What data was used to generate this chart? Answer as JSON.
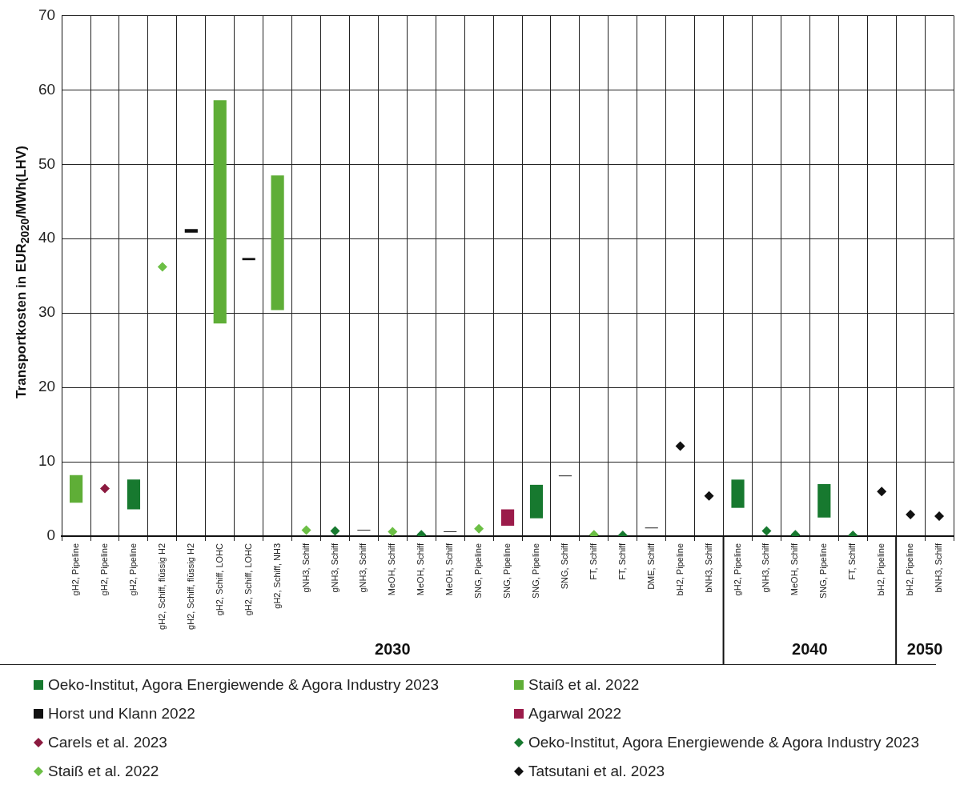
{
  "chart_data": {
    "type": "bar",
    "ylabel": "Transportkosten in EUR$_{2020}$/MWh(LHV)",
    "categories": [
      "gH2, Pipeline",
      "gH2, Pipeline",
      "gH2, Pipeline",
      "gH2, Schiff, flüssig H2",
      "gH2, Schiff, flüssig H2",
      "gH2, Schiff, LOHC",
      "gH2, Schiff, LOHC",
      "gH2, Schiff, NH3",
      "gNH3, Schiff",
      "gNH3, Schiff",
      "gNH3, Schiff",
      "MeOH, Schiff",
      "MeOH, Schiff",
      "MeOH, Schiff",
      "SNG, Pipeline",
      "SNG, Pipeline",
      "SNG, Pipeline",
      "SNG, Schiff",
      "FT, Schiff",
      "FT, Schiff",
      "DME, Schiff",
      "bH2, Pipeline",
      "bNH3, Schiff",
      "gH2, Pipeline",
      "gNH3, Schiff",
      "MeOH, Schiff",
      "SNG, Pipeline",
      "FT, Schiff",
      "bH2, Pipeline",
      "bH2, Pipeline",
      "bNH3, Schiff"
    ],
    "series": [
      {
        "name": "Oeko-Institut, Agora Energiewende & Agora Industry 2023",
        "color": "#17792f",
        "base": [
          null,
          null,
          3.6,
          null,
          null,
          null,
          null,
          null,
          null,
          null,
          null,
          null,
          null,
          null,
          null,
          null,
          2.4,
          null,
          null,
          null,
          null,
          null,
          null,
          3.8,
          null,
          null,
          2.5,
          null,
          null,
          null,
          null
        ],
        "values": [
          null,
          null,
          4.0,
          null,
          null,
          null,
          null,
          null,
          null,
          null,
          null,
          null,
          null,
          null,
          null,
          null,
          4.5,
          null,
          null,
          null,
          null,
          null,
          null,
          3.8,
          null,
          null,
          4.5,
          null,
          null,
          null,
          null
        ]
      },
      {
        "name": "Staiß et al. 2022",
        "color": "#5fae37",
        "base": [
          4.5,
          null,
          null,
          null,
          null,
          28.6,
          null,
          30.4,
          null,
          null,
          null,
          null,
          null,
          null,
          null,
          null,
          null,
          null,
          null,
          null,
          null,
          null,
          null,
          null,
          null,
          null,
          null,
          null,
          null,
          null,
          null
        ],
        "values": [
          3.7,
          null,
          null,
          null,
          null,
          30.0,
          null,
          18.1,
          null,
          null,
          null,
          null,
          null,
          null,
          null,
          null,
          null,
          null,
          null,
          null,
          null,
          null,
          null,
          null,
          null,
          null,
          null,
          null,
          null,
          null,
          null
        ]
      },
      {
        "name": "Horst und Klann 2022",
        "color": "#111111",
        "base": [
          null,
          null,
          null,
          null,
          40.8,
          null,
          37.1,
          null,
          null,
          null,
          0.75,
          null,
          null,
          0.55,
          null,
          null,
          null,
          8.05,
          null,
          null,
          1.05,
          null,
          null,
          null,
          null,
          null,
          null,
          null,
          null,
          null,
          null
        ],
        "values": [
          null,
          null,
          null,
          null,
          0.5,
          null,
          0.3,
          null,
          null,
          null,
          0.1,
          null,
          null,
          0.1,
          null,
          null,
          null,
          0.1,
          null,
          null,
          0.1,
          null,
          null,
          null,
          null,
          null,
          null,
          null,
          null,
          null,
          null
        ]
      },
      {
        "name": "Agarwal 2022",
        "color": "#9b1b4a",
        "base": [
          null,
          null,
          null,
          null,
          null,
          null,
          null,
          null,
          null,
          null,
          null,
          null,
          null,
          null,
          null,
          1.4,
          null,
          null,
          null,
          null,
          null,
          null,
          null,
          null,
          null,
          null,
          null,
          null,
          null,
          null,
          null
        ],
        "values": [
          null,
          null,
          null,
          null,
          null,
          null,
          null,
          null,
          null,
          null,
          null,
          null,
          null,
          null,
          null,
          2.2,
          null,
          null,
          null,
          null,
          null,
          null,
          null,
          null,
          null,
          null,
          null,
          null,
          null,
          null,
          null
        ]
      },
      {
        "name": "Carels et al. 2023",
        "type": "scatter",
        "color": "#8b1a3f",
        "values": [
          null,
          6.4,
          null,
          null,
          null,
          null,
          null,
          null,
          null,
          null,
          null,
          null,
          null,
          null,
          null,
          null,
          null,
          null,
          null,
          null,
          null,
          null,
          null,
          null,
          null,
          null,
          null,
          null,
          null,
          null,
          null
        ]
      },
      {
        "name": "Oeko-Institut, Agora Energiewende & Agora Industry 2023",
        "type": "scatter",
        "color": "#17792f",
        "values": [
          null,
          null,
          null,
          null,
          null,
          null,
          null,
          null,
          null,
          0.7,
          null,
          null,
          0.2,
          null,
          null,
          null,
          null,
          null,
          null,
          0.1,
          null,
          null,
          null,
          null,
          0.7,
          0.2,
          null,
          0.1,
          null,
          null,
          null
        ]
      },
      {
        "name": "Staiß et al. 2022",
        "type": "scatter",
        "color": "#6cbf45",
        "values": [
          null,
          null,
          null,
          36.2,
          null,
          null,
          null,
          null,
          0.8,
          null,
          null,
          0.6,
          null,
          null,
          1.0,
          null,
          null,
          null,
          0.2,
          null,
          null,
          null,
          null,
          null,
          null,
          null,
          null,
          null,
          null,
          null,
          null
        ]
      },
      {
        "name": "Tatsutani et al. 2023",
        "type": "scatter",
        "color": "#111111",
        "values": [
          null,
          null,
          null,
          null,
          null,
          null,
          null,
          null,
          null,
          null,
          null,
          null,
          null,
          null,
          null,
          null,
          null,
          null,
          null,
          null,
          null,
          12.1,
          5.4,
          null,
          null,
          null,
          null,
          null,
          6.0,
          2.9,
          2.7
        ]
      }
    ],
    "ylim": [
      0,
      70
    ],
    "yticks": [
      0,
      10,
      20,
      30,
      40,
      50,
      60,
      70
    ],
    "grid": true,
    "legend": "bottom",
    "marker": "diamond",
    "annotations": [
      "2030",
      "2040",
      "2050"
    ]
  }
}
